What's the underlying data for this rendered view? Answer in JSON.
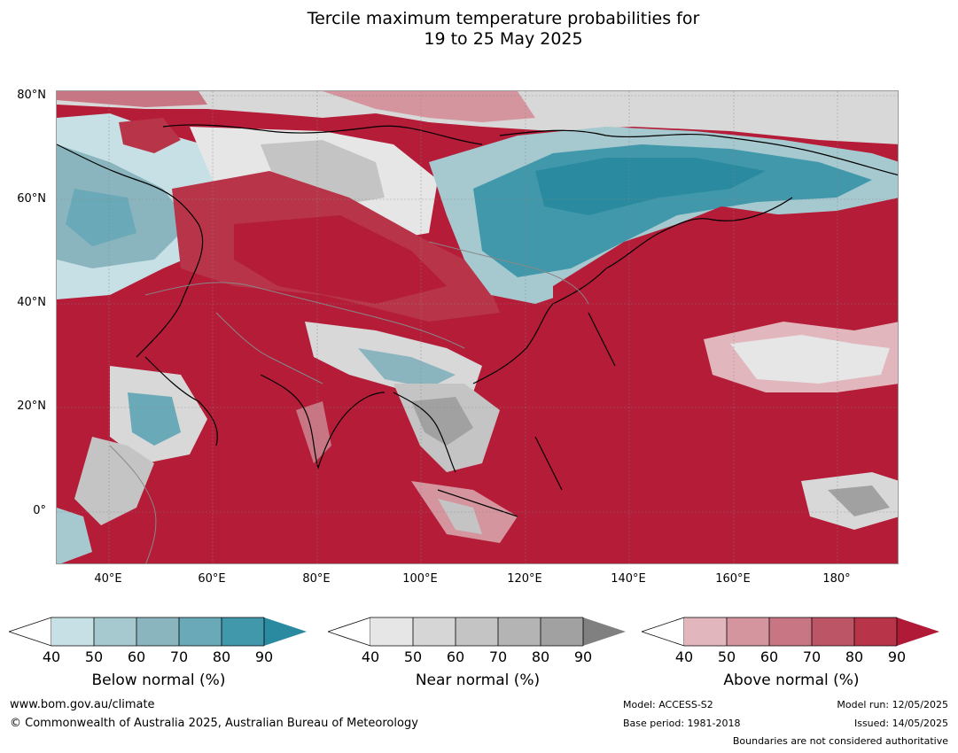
{
  "title_line1": "Tercile maximum temperature probabilities for",
  "title_line2": "19 to 25 May 2025",
  "lat_labels": [
    "80°N",
    "60°N",
    "40°N",
    "20°N",
    "0°"
  ],
  "lon_labels": [
    "40°E",
    "60°E",
    "80°E",
    "100°E",
    "120°E",
    "140°E",
    "160°E",
    "180°"
  ],
  "colorbars": [
    {
      "title": "Below normal (%)",
      "ticks": [
        "40",
        "50",
        "60",
        "70",
        "80",
        "90"
      ],
      "colors": [
        "#c7e0e6",
        "#a6c8cf",
        "#8ab5bf",
        "#6aa9b7",
        "#4198ab",
        "#2a8a9f"
      ]
    },
    {
      "title": "Near normal (%)",
      "ticks": [
        "40",
        "50",
        "60",
        "70",
        "80",
        "90"
      ],
      "colors": [
        "#e6e6e6",
        "#d6d6d6",
        "#c4c4c4",
        "#b4b4b4",
        "#a1a1a1",
        "#808080"
      ]
    },
    {
      "title": "Above normal (%)",
      "ticks": [
        "40",
        "50",
        "60",
        "70",
        "80",
        "90"
      ],
      "colors": [
        "#e2b6bd",
        "#d4959e",
        "#c87683",
        "#bc5565",
        "#b83549",
        "#b11a36"
      ]
    }
  ],
  "footer": {
    "url": "www.bom.gov.au/climate",
    "copyright": "© Commonwealth of Australia 2025, Australian Bureau of Meteorology",
    "model": "Model: ACCESS-S2",
    "base_period": "Base period: 1981-2018",
    "model_run": "Model run: 12/05/2025",
    "issued": "Issued: 14/05/2025",
    "boundaries": "Boundaries are not considered authoritative"
  }
}
